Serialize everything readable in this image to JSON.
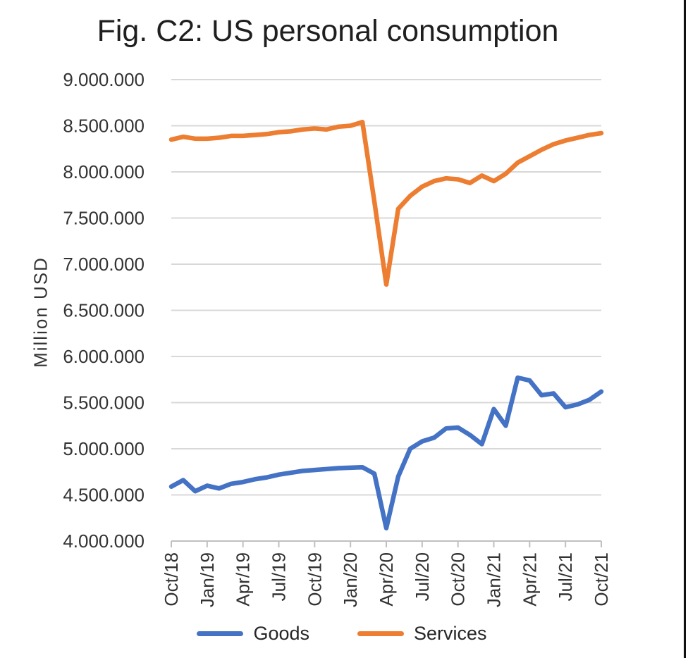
{
  "header": {
    "title": "Fig. C2: US personal consumption"
  },
  "style": {
    "background": "#FFFFFF",
    "grid_color": "#D8D8D8",
    "axis_color": "#C0C0C0",
    "text_color": "#333333",
    "title_color": "#1F1F1F",
    "border_color": "#111111"
  },
  "chart_data": {
    "type": "line",
    "title": "Fig. C2: US personal consumption",
    "xlabel": "",
    "ylabel": "Million USD",
    "ylim": [
      4000000,
      9000000
    ],
    "y_tick_step": 500000,
    "grid": true,
    "legend_position": "bottom",
    "y_tick_labels": [
      "9.000.000",
      "8.500.000",
      "8.000.000",
      "7.500.000",
      "7.000.000",
      "6.500.000",
      "6.000.000",
      "5.500.000",
      "5.000.000",
      "4.500.000",
      "4.000.000"
    ],
    "x_tick_labels": [
      "Oct/18",
      "Jan/19",
      "Apr/19",
      "Jul/19",
      "Oct/19",
      "Jan/20",
      "Apr/20",
      "Jul/20",
      "Oct/20",
      "Jan/21",
      "Apr/21",
      "Jul/21",
      "Oct/21"
    ],
    "categories": [
      "Oct/18",
      "Nov/18",
      "Dec/18",
      "Jan/19",
      "Feb/19",
      "Mar/19",
      "Apr/19",
      "May/19",
      "Jun/19",
      "Jul/19",
      "Aug/19",
      "Sep/19",
      "Oct/19",
      "Nov/19",
      "Dec/19",
      "Jan/20",
      "Feb/20",
      "Mar/20",
      "Apr/20",
      "May/20",
      "Jun/20",
      "Jul/20",
      "Aug/20",
      "Sep/20",
      "Oct/20",
      "Nov/20",
      "Dec/20",
      "Jan/21",
      "Feb/21",
      "Mar/21",
      "Apr/21",
      "May/21",
      "Jun/21",
      "Jul/21",
      "Aug/21",
      "Sep/21",
      "Oct/21"
    ],
    "series": [
      {
        "name": "Goods",
        "color": "#4472C4",
        "values": [
          4590000,
          4660000,
          4540000,
          4600000,
          4570000,
          4620000,
          4640000,
          4670000,
          4690000,
          4720000,
          4740000,
          4760000,
          4770000,
          4780000,
          4790000,
          4795000,
          4800000,
          4730000,
          4140000,
          4700000,
          5000000,
          5080000,
          5120000,
          5220000,
          5230000,
          5150000,
          5050000,
          5430000,
          5250000,
          5770000,
          5740000,
          5580000,
          5600000,
          5450000,
          5480000,
          5530000,
          5620000
        ]
      },
      {
        "name": "Services",
        "color": "#ED7D31",
        "values": [
          8350000,
          8380000,
          8360000,
          8360000,
          8370000,
          8390000,
          8390000,
          8400000,
          8410000,
          8430000,
          8440000,
          8460000,
          8470000,
          8460000,
          8490000,
          8500000,
          8540000,
          7680000,
          6780000,
          7600000,
          7740000,
          7840000,
          7900000,
          7930000,
          7920000,
          7880000,
          7960000,
          7900000,
          7980000,
          8100000,
          8170000,
          8240000,
          8300000,
          8340000,
          8370000,
          8400000,
          8420000
        ]
      }
    ]
  }
}
